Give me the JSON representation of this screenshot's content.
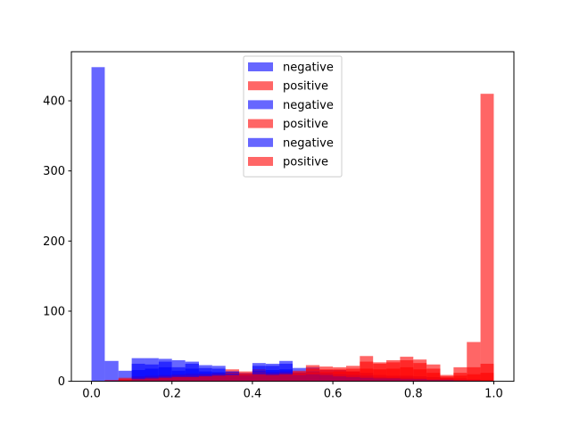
{
  "chart_data": {
    "type": "histogram",
    "title": "",
    "xlabel": "",
    "ylabel": "",
    "xlim": [
      -0.05,
      1.05
    ],
    "ylim": [
      0,
      470
    ],
    "xticks": [
      0.0,
      0.2,
      0.4,
      0.6,
      0.8,
      1.0
    ],
    "xtick_labels": [
      "0.0",
      "0.2",
      "0.4",
      "0.6",
      "0.8",
      "1.0"
    ],
    "yticks": [
      0,
      100,
      200,
      300,
      400
    ],
    "ytick_labels": [
      "0",
      "100",
      "200",
      "300",
      "400"
    ],
    "legend": {
      "placement": "upper center",
      "entries": [
        {
          "label": "negative",
          "color": "#0000ff",
          "alpha": 0.6
        },
        {
          "label": "positive",
          "color": "#ff0000",
          "alpha": 0.6
        },
        {
          "label": "negative",
          "color": "#0000ff",
          "alpha": 0.6
        },
        {
          "label": "positive",
          "color": "#ff0000",
          "alpha": 0.6
        },
        {
          "label": "negative",
          "color": "#0000ff",
          "alpha": 0.6
        },
        {
          "label": "positive",
          "color": "#ff0000",
          "alpha": 0.6
        }
      ]
    },
    "series": [
      {
        "name": "negative",
        "color": "#0000ff",
        "alpha": 0.6,
        "bins": [
          [
            0.0,
            0.033,
            448
          ],
          [
            0.033,
            0.067,
            29
          ],
          [
            0.067,
            0.1,
            15
          ],
          [
            0.1,
            0.133,
            33
          ],
          [
            0.133,
            0.167,
            33
          ],
          [
            0.167,
            0.2,
            32
          ],
          [
            0.2,
            0.233,
            30
          ],
          [
            0.233,
            0.267,
            28
          ],
          [
            0.267,
            0.3,
            23
          ],
          [
            0.3,
            0.333,
            22
          ],
          [
            0.333,
            0.367,
            14
          ],
          [
            0.367,
            0.4,
            12
          ],
          [
            0.4,
            0.433,
            26
          ],
          [
            0.433,
            0.467,
            25
          ],
          [
            0.467,
            0.5,
            29
          ],
          [
            0.5,
            0.533,
            19
          ],
          [
            0.533,
            0.567,
            20
          ],
          [
            0.567,
            0.6,
            16
          ],
          [
            0.6,
            0.633,
            16
          ],
          [
            0.633,
            0.667,
            14
          ],
          [
            0.667,
            0.7,
            12
          ],
          [
            0.7,
            0.733,
            9
          ],
          [
            0.733,
            0.767,
            8
          ],
          [
            0.767,
            0.8,
            8
          ],
          [
            0.8,
            0.833,
            7
          ],
          [
            0.833,
            0.867,
            6
          ],
          [
            0.867,
            0.9,
            5
          ],
          [
            0.9,
            0.933,
            4
          ],
          [
            0.933,
            0.967,
            3
          ],
          [
            0.967,
            1.0,
            2
          ]
        ]
      },
      {
        "name": "positive",
        "color": "#ff0000",
        "alpha": 0.6,
        "bins": [
          [
            0.0,
            0.033,
            0
          ],
          [
            0.033,
            0.067,
            2
          ],
          [
            0.067,
            0.1,
            5
          ],
          [
            0.1,
            0.133,
            7
          ],
          [
            0.133,
            0.167,
            8
          ],
          [
            0.167,
            0.2,
            9
          ],
          [
            0.2,
            0.233,
            10
          ],
          [
            0.233,
            0.267,
            11
          ],
          [
            0.267,
            0.3,
            11
          ],
          [
            0.3,
            0.333,
            12
          ],
          [
            0.333,
            0.367,
            17
          ],
          [
            0.367,
            0.4,
            14
          ],
          [
            0.4,
            0.433,
            17
          ],
          [
            0.433,
            0.467,
            13
          ],
          [
            0.467,
            0.5,
            14
          ],
          [
            0.5,
            0.533,
            15
          ],
          [
            0.533,
            0.567,
            23
          ],
          [
            0.567,
            0.6,
            21
          ],
          [
            0.6,
            0.633,
            20
          ],
          [
            0.633,
            0.667,
            22
          ],
          [
            0.667,
            0.7,
            36
          ],
          [
            0.7,
            0.733,
            27
          ],
          [
            0.733,
            0.767,
            30
          ],
          [
            0.767,
            0.8,
            35
          ],
          [
            0.8,
            0.833,
            31
          ],
          [
            0.833,
            0.867,
            24
          ],
          [
            0.867,
            0.9,
            9
          ],
          [
            0.9,
            0.933,
            20
          ],
          [
            0.933,
            0.967,
            56
          ],
          [
            0.967,
            1.0,
            410
          ]
        ]
      },
      {
        "name": "negative",
        "color": "#0000ff",
        "alpha": 0.6,
        "bins": [
          [
            0.0,
            0.033,
            0
          ],
          [
            0.033,
            0.067,
            1
          ],
          [
            0.067,
            0.1,
            2
          ],
          [
            0.1,
            0.133,
            25
          ],
          [
            0.133,
            0.167,
            24
          ],
          [
            0.167,
            0.2,
            28
          ],
          [
            0.2,
            0.233,
            20
          ],
          [
            0.233,
            0.267,
            25
          ],
          [
            0.267,
            0.3,
            19
          ],
          [
            0.3,
            0.333,
            18
          ],
          [
            0.333,
            0.367,
            14
          ],
          [
            0.367,
            0.4,
            10
          ],
          [
            0.4,
            0.433,
            22
          ],
          [
            0.433,
            0.467,
            22
          ],
          [
            0.467,
            0.5,
            25
          ],
          [
            0.5,
            0.533,
            12
          ],
          [
            0.533,
            0.567,
            14
          ],
          [
            0.567,
            0.6,
            12
          ],
          [
            0.6,
            0.633,
            10
          ],
          [
            0.633,
            0.667,
            9
          ],
          [
            0.667,
            0.7,
            8
          ],
          [
            0.7,
            0.733,
            6
          ],
          [
            0.733,
            0.767,
            5
          ],
          [
            0.767,
            0.8,
            5
          ],
          [
            0.8,
            0.833,
            4
          ],
          [
            0.833,
            0.867,
            3
          ],
          [
            0.867,
            0.9,
            3
          ],
          [
            0.9,
            0.933,
            2
          ],
          [
            0.933,
            0.967,
            1
          ],
          [
            0.967,
            1.0,
            1
          ]
        ]
      },
      {
        "name": "positive",
        "color": "#ff0000",
        "alpha": 0.6,
        "bins": [
          [
            0.0,
            0.033,
            0
          ],
          [
            0.033,
            0.067,
            0
          ],
          [
            0.067,
            0.1,
            3
          ],
          [
            0.1,
            0.133,
            5
          ],
          [
            0.133,
            0.167,
            6
          ],
          [
            0.167,
            0.2,
            7
          ],
          [
            0.2,
            0.233,
            8
          ],
          [
            0.233,
            0.267,
            8
          ],
          [
            0.267,
            0.3,
            9
          ],
          [
            0.3,
            0.333,
            10
          ],
          [
            0.333,
            0.367,
            12
          ],
          [
            0.367,
            0.4,
            11
          ],
          [
            0.4,
            0.433,
            14
          ],
          [
            0.433,
            0.467,
            11
          ],
          [
            0.467,
            0.5,
            12
          ],
          [
            0.5,
            0.533,
            13
          ],
          [
            0.533,
            0.567,
            18
          ],
          [
            0.567,
            0.6,
            17
          ],
          [
            0.6,
            0.633,
            17
          ],
          [
            0.633,
            0.667,
            18
          ],
          [
            0.667,
            0.7,
            28
          ],
          [
            0.7,
            0.733,
            25
          ],
          [
            0.733,
            0.767,
            27
          ],
          [
            0.767,
            0.8,
            30
          ],
          [
            0.8,
            0.833,
            26
          ],
          [
            0.833,
            0.867,
            18
          ],
          [
            0.867,
            0.9,
            7
          ],
          [
            0.9,
            0.933,
            12
          ],
          [
            0.933,
            0.967,
            20
          ],
          [
            0.967,
            1.0,
            25
          ]
        ]
      },
      {
        "name": "negative",
        "color": "#0000ff",
        "alpha": 0.6,
        "bins": [
          [
            0.0,
            0.033,
            0
          ],
          [
            0.033,
            0.067,
            0
          ],
          [
            0.067,
            0.1,
            1
          ],
          [
            0.1,
            0.133,
            16
          ],
          [
            0.133,
            0.167,
            18
          ],
          [
            0.167,
            0.2,
            20
          ],
          [
            0.2,
            0.233,
            15
          ],
          [
            0.233,
            0.267,
            18
          ],
          [
            0.267,
            0.3,
            14
          ],
          [
            0.3,
            0.333,
            13
          ],
          [
            0.333,
            0.367,
            11
          ],
          [
            0.367,
            0.4,
            8
          ],
          [
            0.4,
            0.433,
            15
          ],
          [
            0.433,
            0.467,
            16
          ],
          [
            0.467,
            0.5,
            17
          ],
          [
            0.5,
            0.533,
            9
          ],
          [
            0.533,
            0.567,
            10
          ],
          [
            0.567,
            0.6,
            9
          ],
          [
            0.6,
            0.633,
            7
          ],
          [
            0.633,
            0.667,
            6
          ],
          [
            0.667,
            0.7,
            5
          ],
          [
            0.7,
            0.733,
            4
          ],
          [
            0.733,
            0.767,
            4
          ],
          [
            0.767,
            0.8,
            3
          ],
          [
            0.8,
            0.833,
            3
          ],
          [
            0.833,
            0.867,
            2
          ],
          [
            0.867,
            0.9,
            2
          ],
          [
            0.9,
            0.933,
            1
          ],
          [
            0.933,
            0.967,
            1
          ],
          [
            0.967,
            1.0,
            0
          ]
        ]
      },
      {
        "name": "positive",
        "color": "#ff0000",
        "alpha": 0.6,
        "bins": [
          [
            0.0,
            0.033,
            0
          ],
          [
            0.033,
            0.067,
            0
          ],
          [
            0.067,
            0.1,
            2
          ],
          [
            0.1,
            0.133,
            3
          ],
          [
            0.133,
            0.167,
            4
          ],
          [
            0.167,
            0.2,
            5
          ],
          [
            0.2,
            0.233,
            6
          ],
          [
            0.233,
            0.267,
            6
          ],
          [
            0.267,
            0.3,
            7
          ],
          [
            0.3,
            0.333,
            8
          ],
          [
            0.333,
            0.367,
            9
          ],
          [
            0.367,
            0.4,
            9
          ],
          [
            0.4,
            0.433,
            10
          ],
          [
            0.433,
            0.467,
            9
          ],
          [
            0.467,
            0.5,
            10
          ],
          [
            0.5,
            0.533,
            11
          ],
          [
            0.533,
            0.567,
            13
          ],
          [
            0.567,
            0.6,
            13
          ],
          [
            0.6,
            0.633,
            14
          ],
          [
            0.633,
            0.667,
            14
          ],
          [
            0.667,
            0.7,
            18
          ],
          [
            0.7,
            0.733,
            17
          ],
          [
            0.733,
            0.767,
            18
          ],
          [
            0.767,
            0.8,
            20
          ],
          [
            0.8,
            0.833,
            17
          ],
          [
            0.833,
            0.867,
            12
          ],
          [
            0.867,
            0.9,
            5
          ],
          [
            0.9,
            0.933,
            8
          ],
          [
            0.933,
            0.967,
            10
          ],
          [
            0.967,
            1.0,
            12
          ]
        ]
      }
    ]
  }
}
